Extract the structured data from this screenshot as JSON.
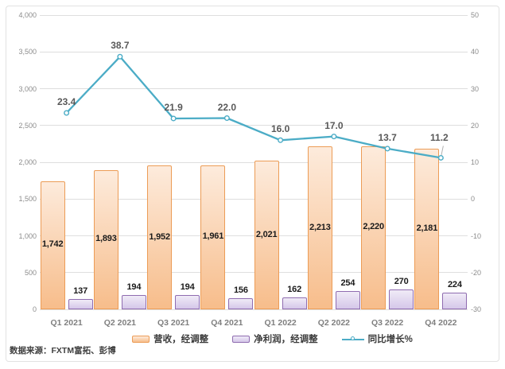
{
  "source_note": "数据来源：FXTM富拓、彭博",
  "colors": {
    "grid": "#dedede",
    "tick_text": "#8c8c8c",
    "category_text": "#7f7f7f",
    "bar_label": "#1a1a1a",
    "line_label": "#595959",
    "leader": "#b0b0b0",
    "card_border": "#e2e2e2"
  },
  "chart_data": {
    "type": "bar+line combo",
    "title": "",
    "categories": [
      "Q1 2021",
      "Q2 2021",
      "Q3 2021",
      "Q4 2021",
      "Q1 2022",
      "Q2 2022",
      "Q3 2022",
      "Q4 2022"
    ],
    "series": [
      {
        "key": "revenue",
        "name": "营收，经调整",
        "type": "bar",
        "axis": "left",
        "values": [
          1742,
          1893,
          1952,
          1961,
          2021,
          2213,
          2220,
          2181
        ],
        "value_labels": [
          "1,742",
          "1,893",
          "1,952",
          "1,961",
          "2,021",
          "2,213",
          "2,220",
          "2,181"
        ],
        "fill_top": "#fdebdc",
        "fill_bottom": "#f7bd8b",
        "border": "#ec9c56"
      },
      {
        "key": "net-profit",
        "name": "净利润，经调整",
        "type": "bar",
        "axis": "left",
        "values": [
          137,
          194,
          194,
          156,
          162,
          254,
          270,
          224
        ],
        "value_labels": [
          "137",
          "194",
          "194",
          "156",
          "162",
          "254",
          "270",
          "224"
        ],
        "fill_top": "#f0ebf7",
        "fill_bottom": "#d5c7e9",
        "border": "#8f6cb0"
      },
      {
        "key": "yoy-growth",
        "name": "同比增长%",
        "type": "line",
        "axis": "right",
        "values": [
          23.4,
          38.7,
          21.9,
          22.0,
          16.0,
          17.0,
          13.7,
          11.2
        ],
        "value_labels": [
          "23.4",
          "38.7",
          "21.9",
          "22.0",
          "16.0",
          "17.0",
          "13.7",
          "11.2"
        ],
        "line_color": "#4bacc6",
        "marker_fill": "#ffffff",
        "leader_point_index": 7
      }
    ],
    "left_axis": {
      "min": 0,
      "max": 4000,
      "step": 500,
      "tick_labels_top_to_bottom": [
        "4,000",
        "3,500",
        "3,000",
        "2,500",
        "2,000",
        "1,500",
        "1,000",
        "500",
        "0"
      ]
    },
    "right_axis": {
      "min": -30,
      "max": 50,
      "step": 10,
      "tick_labels_top_to_bottom": [
        "50",
        "40",
        "30",
        "20",
        "10",
        "0",
        "-10",
        "-20",
        "-30"
      ]
    },
    "grid": true,
    "legend_position": "bottom"
  }
}
